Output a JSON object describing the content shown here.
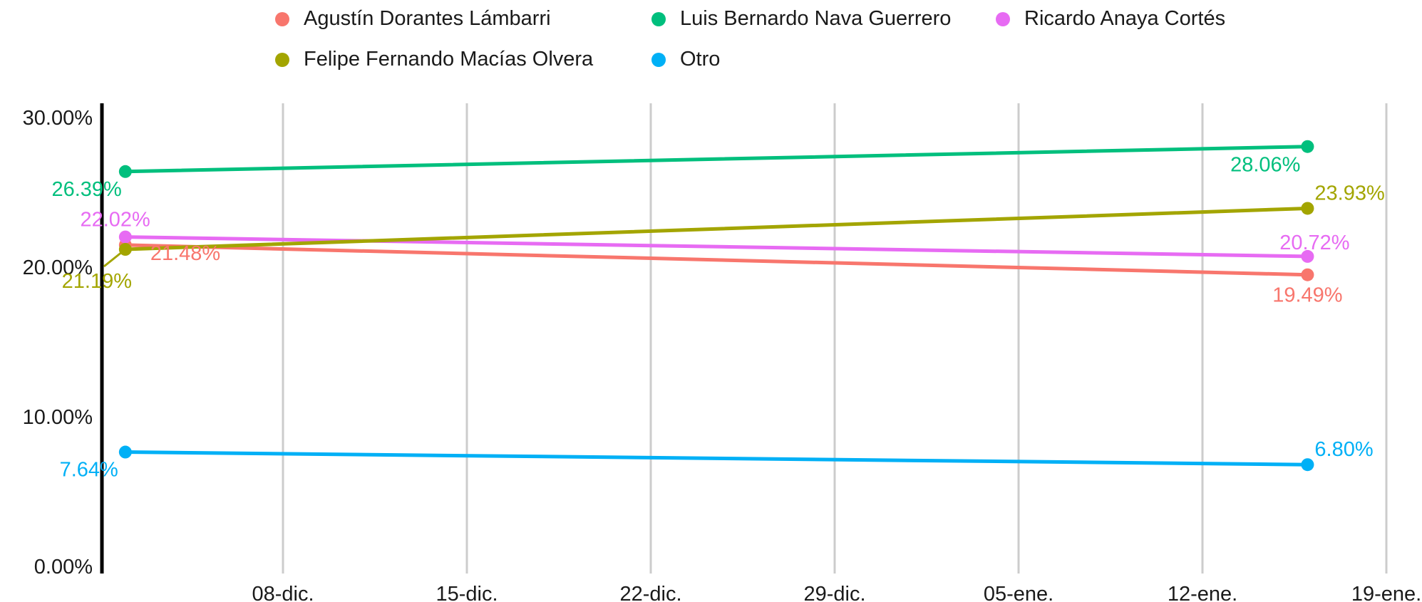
{
  "chart_data": {
    "type": "line",
    "title": "",
    "xlabel": "",
    "ylabel": "",
    "x": [
      "2023-12-02",
      "2024-01-16"
    ],
    "x_ticks": [
      "08-dic.",
      "15-dic.",
      "22-dic.",
      "29-dic.",
      "05-ene.",
      "12-ene.",
      "19-ene."
    ],
    "x_tick_dates": [
      "2023-12-08",
      "2023-12-15",
      "2023-12-22",
      "2023-12-29",
      "2024-01-05",
      "2024-01-12",
      "2024-01-19"
    ],
    "y_ticks": [
      "0.00%",
      "10.00%",
      "20.00%",
      "30.00%"
    ],
    "ylim": [
      0,
      30
    ],
    "y_unit": "%",
    "grid": "vertical",
    "legend_position": "top",
    "series": [
      {
        "name": "Agustín Dorantes Lámbarri",
        "color": "#F8766D",
        "values": [
          21.48,
          19.49
        ],
        "labels": [
          "21.48%",
          "19.49%"
        ]
      },
      {
        "name": "Luis Bernardo Nava Guerrero",
        "color": "#00BF7D",
        "values": [
          26.39,
          28.06
        ],
        "labels": [
          "26.39%",
          "28.06%"
        ]
      },
      {
        "name": "Ricardo Anaya Cortés",
        "color": "#E76BF3",
        "values": [
          22.02,
          20.72
        ],
        "labels": [
          "22.02%",
          "20.72%"
        ]
      },
      {
        "name": "Felipe Fernando Macías Olvera",
        "color": "#A3A500",
        "values": [
          21.19,
          23.93
        ],
        "labels": [
          "21.19%",
          "23.93%"
        ]
      },
      {
        "name": "Otro",
        "color": "#00B0F6",
        "values": [
          7.64,
          6.8
        ],
        "labels": [
          "7.64%",
          "6.80%"
        ]
      }
    ]
  }
}
